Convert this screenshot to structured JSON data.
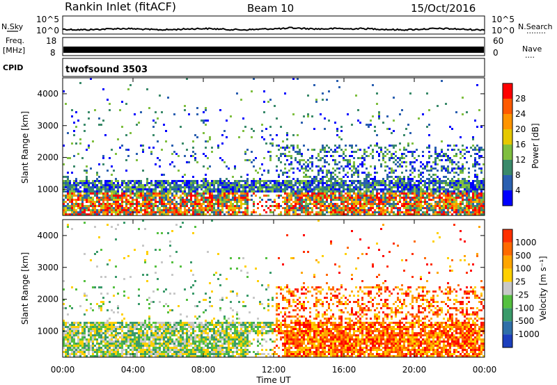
{
  "header": {
    "station": "Rankin Inlet (fitACF)",
    "beam": "Beam 10",
    "date": "15/Oct/2016"
  },
  "side_labels": {
    "nsky": "N.Sky",
    "freq_top": "Freq.",
    "freq_unit": "[MHz]",
    "cpid": "CPID",
    "nsearch": "N.Search",
    "nave": "Nave",
    "dots_nsearch": "........",
    "dots_nave": "...."
  },
  "cpid_value": "twofsound 3503",
  "colors": {
    "power": [
      "#0000ff",
      "#2a5fb0",
      "#3a8a6a",
      "#7fbf3f",
      "#e6c800",
      "#ff9400",
      "#ff5a00",
      "#ff0000"
    ],
    "velocity": [
      "#1c3fbd",
      "#2f6fa8",
      "#3a9a6a",
      "#55c040",
      "#c8c8c8",
      "#ffd000",
      "#ffa500",
      "#ff6a00",
      "#ff3000",
      "#ff0000"
    ]
  },
  "chart_data": [
    {
      "type": "line",
      "name": "noise",
      "left_ticks": [
        "10^5",
        "10^0"
      ],
      "right_ticks": [
        "10^5",
        "10^0"
      ],
      "description_left": "N.Sky",
      "description_right": "N.Search"
    },
    {
      "type": "line",
      "name": "freq-nave",
      "left_ticks": [
        "18",
        "8"
      ],
      "right_ticks": [
        "60",
        "0"
      ],
      "ylim_left": [
        8,
        18
      ],
      "ylim_right": [
        0,
        60
      ]
    },
    {
      "type": "heatmap",
      "name": "power",
      "ylabel": "Slant Range [km]",
      "y_ticks": [
        1000,
        2000,
        3000,
        4000
      ],
      "ylim": [
        180,
        4500
      ],
      "colorbar_label": "Power [dB]",
      "colorbar_ticks": [
        4,
        8,
        12,
        16,
        20,
        24,
        28
      ]
    },
    {
      "type": "heatmap",
      "name": "velocity",
      "ylabel": "Slant Range [km]",
      "y_ticks": [
        1000,
        2000,
        3000,
        4000
      ],
      "ylim": [
        180,
        4500
      ],
      "colorbar_label": "Velocity [m s⁻¹]",
      "colorbar_ticks": [
        "1000",
        "500",
        "100",
        "25",
        "-25",
        "-100",
        "-500",
        "-1000"
      ]
    }
  ],
  "x_axis": {
    "label": "Time UT",
    "ticks": [
      "00:00",
      "04:00",
      "08:00",
      "12:00",
      "16:00",
      "20:00",
      "00:00"
    ]
  }
}
